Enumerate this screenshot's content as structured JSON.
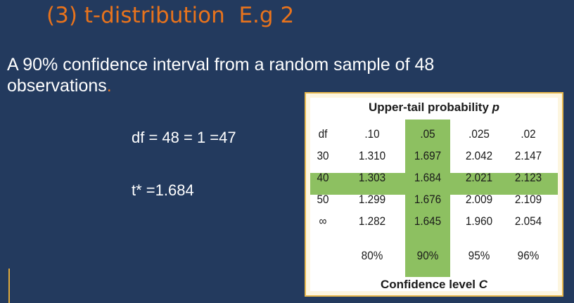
{
  "slide": {
    "title": "(3) t-distribution  E.g 2",
    "body_line1": "A 90% confidence interval from a random sample of 48",
    "body_line2": "observations",
    "body_end": ".",
    "df_calc": "df = 48 = 1 =47",
    "t_star": "t* =1.684"
  },
  "colors": {
    "background": "#233a5e",
    "title": "#e8731c",
    "highlight": "#8dc061",
    "table_border": "#e8b84c"
  },
  "table": {
    "top_header_text": "Upper-tail probability ",
    "top_header_var": "p",
    "bottom_header_text": "Confidence level ",
    "bottom_header_var": "C",
    "column_headers": [
      "df",
      ".10",
      ".05",
      ".025",
      ".02"
    ],
    "rows": [
      [
        "30",
        "1.310",
        "1.697",
        "2.042",
        "2.147"
      ],
      [
        "40",
        "1.303",
        "1.684",
        "2.021",
        "2.123"
      ],
      [
        "50",
        "1.299",
        "1.676",
        "2.009",
        "2.109"
      ],
      [
        "∞",
        "1.282",
        "1.645",
        "1.960",
        "2.054"
      ]
    ],
    "confidence_row": [
      "",
      "80%",
      "90%",
      "95%",
      "96%"
    ],
    "highlight_column": ".05",
    "highlight_row": "40"
  }
}
